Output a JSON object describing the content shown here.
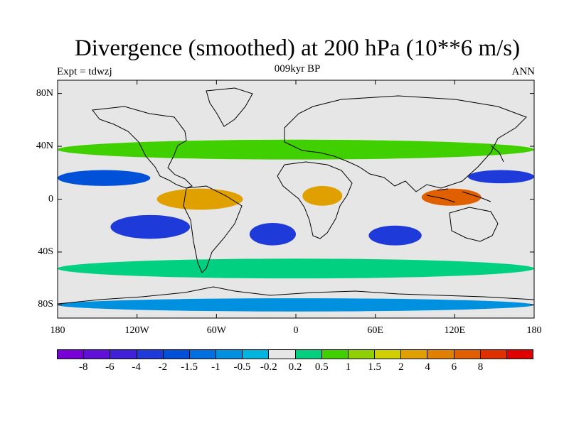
{
  "header": {
    "title": "Divergence (smoothed) at 200 hPa (10**6 m/s)",
    "subtitle": "009kyr BP",
    "experiment": "Expt = tdwzj",
    "season": "ANN"
  },
  "map": {
    "lat_ticks": [
      "80N",
      "40N",
      "0",
      "40S",
      "80S"
    ],
    "lat_values": [
      80,
      40,
      0,
      -40,
      -80
    ],
    "lon_ticks": [
      "180",
      "120W",
      "60W",
      "0",
      "60E",
      "120E",
      "180"
    ],
    "lon_values": [
      -180,
      -120,
      -60,
      0,
      60,
      120,
      180
    ],
    "lat_range": [
      -90,
      90
    ],
    "lon_range": [
      -180,
      180
    ],
    "background_color": "#e6e6e6",
    "fields": [
      {
        "name": "tropical-convergence-band-north",
        "level": -2,
        "color": "#0050d8",
        "lon": [
          -180,
          -110
        ],
        "lat": [
          10,
          22
        ]
      },
      {
        "name": "eastpac-divergence",
        "level": 2,
        "color": "#e0a000",
        "lon": [
          -105,
          -40
        ],
        "lat": [
          -8,
          8
        ]
      },
      {
        "name": "southpac-convergence",
        "level": -2,
        "color": "#1e3ad8",
        "lon": [
          -140,
          -80
        ],
        "lat": [
          -30,
          -12
        ]
      },
      {
        "name": "atlantic-convergence",
        "level": -2,
        "color": "#1e3ad8",
        "lon": [
          -35,
          0
        ],
        "lat": [
          -35,
          -18
        ]
      },
      {
        "name": "africa-divergence",
        "level": 2,
        "color": "#e0a000",
        "lon": [
          5,
          35
        ],
        "lat": [
          -5,
          10
        ]
      },
      {
        "name": "indian-ocean-convergence",
        "level": -2,
        "color": "#1e3ad8",
        "lon": [
          55,
          95
        ],
        "lat": [
          -35,
          -20
        ]
      },
      {
        "name": "maritime-continent-divergence",
        "level": 6,
        "color": "#e06000",
        "lon": [
          95,
          140
        ],
        "lat": [
          -5,
          8
        ]
      },
      {
        "name": "westpac-convergence",
        "level": -2,
        "color": "#1e3ad8",
        "lon": [
          130,
          180
        ],
        "lat": [
          12,
          22
        ]
      },
      {
        "name": "nh-midlat-divergence",
        "level": 1,
        "color": "#40d000",
        "lon": [
          -180,
          180
        ],
        "lat": [
          30,
          45
        ]
      },
      {
        "name": "sh-midlat-divergence",
        "level": 0.5,
        "color": "#00d080",
        "lon": [
          -180,
          180
        ],
        "lat": [
          -60,
          -45
        ]
      },
      {
        "name": "antarctic-band",
        "level": -1,
        "color": "#0090e0",
        "lon": [
          -180,
          180
        ],
        "lat": [
          -85,
          -75
        ]
      }
    ]
  },
  "colorbar": {
    "colors": [
      "#7a00d8",
      "#6010d8",
      "#4020d8",
      "#1e3ad8",
      "#0050d8",
      "#0070e0",
      "#0090e0",
      "#00b4e0",
      "#e6e6e6",
      "#00d080",
      "#40d000",
      "#90d000",
      "#d0d000",
      "#e0a000",
      "#e08000",
      "#e06000",
      "#e03000",
      "#e00000"
    ],
    "labels": [
      "-8",
      "-6",
      "-4",
      "-2",
      "-1.5",
      "-1",
      "-0.5",
      "-0.2",
      "0.2",
      "0.5",
      "1",
      "1.5",
      "2",
      "4",
      "6",
      "8"
    ]
  }
}
